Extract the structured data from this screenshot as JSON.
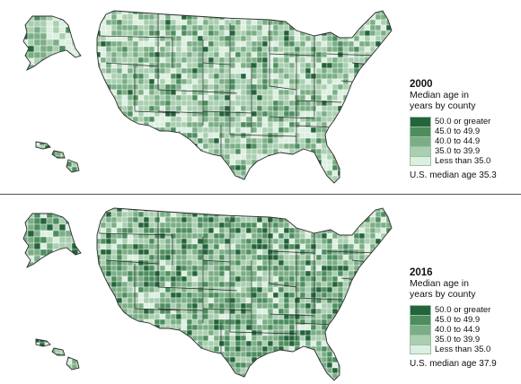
{
  "colors": {
    "c5": "#24643b",
    "c4": "#4d8d5e",
    "c3": "#7bae86",
    "c2": "#a9cfb0",
    "c1": "#dcefe0",
    "state_border": "#2c2c2c",
    "county_line": "#ffffff"
  },
  "legend_items": [
    {
      "label": "50.0 or greater",
      "color_key": "c5"
    },
    {
      "label": "45.0 to 49.9",
      "color_key": "c4"
    },
    {
      "label": "40.0 to 44.9",
      "color_key": "c3"
    },
    {
      "label": "35.0 to 39.9",
      "color_key": "c2"
    },
    {
      "label": "Less than 35.0",
      "color_key": "c1"
    }
  ],
  "maps": [
    {
      "year": "2000",
      "title_line1": "Median age in",
      "title_line2": "years by county",
      "median_label": "U.S. median age 35.3",
      "dominant_class": "c2",
      "class_mix": {
        "c1": 0.22,
        "c2": 0.38,
        "c3": 0.28,
        "c4": 0.09,
        "c5": 0.03
      }
    },
    {
      "year": "2016",
      "title_line1": "Median age in",
      "title_line2": "years by county",
      "median_label": "U.S. median age 37.9",
      "dominant_class": "c3",
      "class_mix": {
        "c1": 0.1,
        "c2": 0.24,
        "c3": 0.36,
        "c4": 0.2,
        "c5": 0.1
      }
    }
  ]
}
